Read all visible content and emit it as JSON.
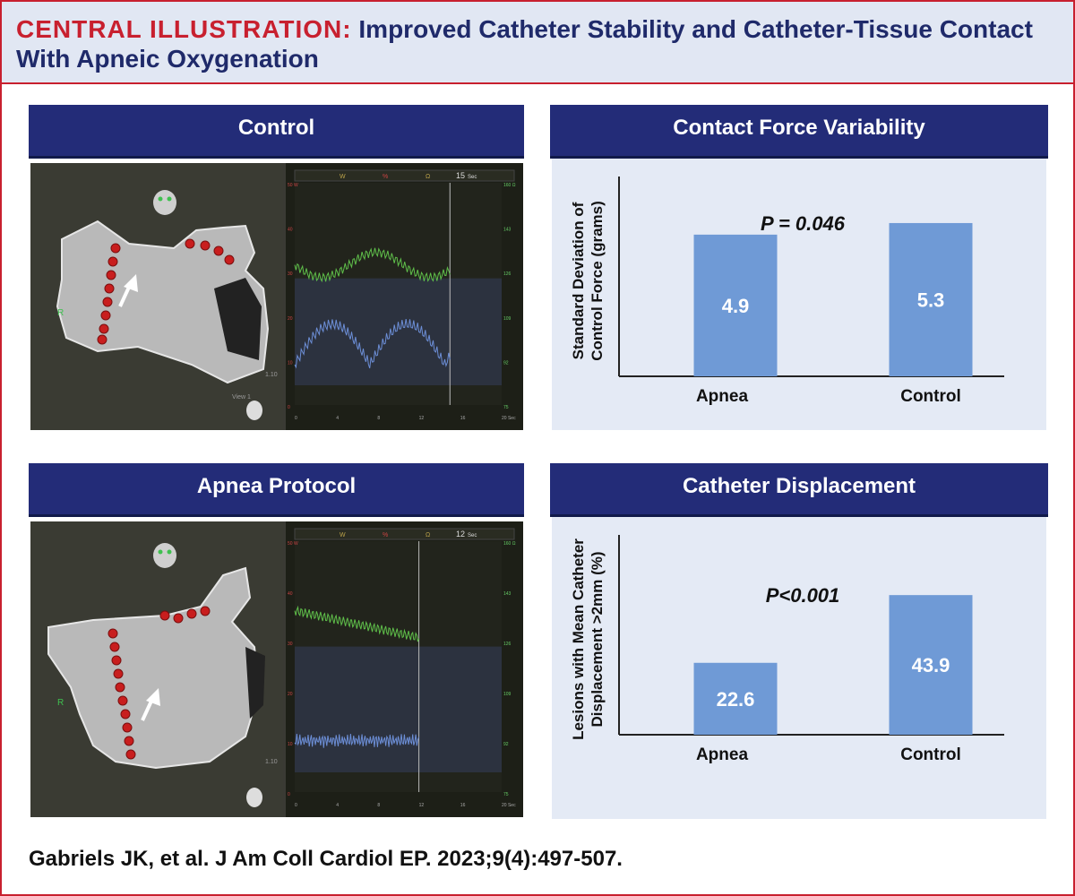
{
  "header": {
    "label": "CENTRAL ILLUSTRATION:",
    "title": "Improved Catheter Stability and Catheter-Tissue Contact With Apneic Oxygenation"
  },
  "panels": {
    "control_title": "Control",
    "apnea_title": "Apnea Protocol",
    "cf_title": "Contact Force Variability",
    "disp_title": "Catheter Displacement"
  },
  "mapping_control": {
    "time_label": "15",
    "time_unit": "Sec",
    "channel_labels": [
      "W",
      "%",
      "Ω"
    ],
    "view_label": "View 1",
    "scale_label": "1.10",
    "x_ticks": [
      "0",
      "4",
      "8",
      "12",
      "16",
      "20 Sec"
    ],
    "left_ticks": [
      "50 W",
      "40",
      "30",
      "20",
      "10",
      "0"
    ],
    "right_ticks": [
      "160 Ω",
      "143",
      "126",
      "109",
      "92",
      "75"
    ],
    "orientation": "R"
  },
  "mapping_apnea": {
    "time_label": "12",
    "time_unit": "Sec",
    "channel_labels": [
      "W",
      "%",
      "Ω"
    ],
    "scale_label": "1.10",
    "x_ticks": [
      "0",
      "4",
      "8",
      "12",
      "16",
      "20 Sec"
    ],
    "left_ticks": [
      "50 W",
      "40",
      "30",
      "20",
      "10",
      "0"
    ],
    "right_ticks": [
      "160 Ω",
      "143",
      "126",
      "109",
      "92",
      "75"
    ],
    "orientation": "R"
  },
  "chart_data": [
    {
      "type": "bar",
      "title": "Contact Force Variability",
      "ylabel": "Standard Deviation of Control Force (grams)",
      "ylabel_lines": [
        "Standard Deviation of",
        "Control Force (grams)"
      ],
      "annotation": "P = 0.046",
      "categories": [
        "Apnea",
        "Control"
      ],
      "values": [
        4.9,
        5.3
      ],
      "value_labels": [
        "4.9",
        "5.3"
      ],
      "ylim": [
        0,
        6.6
      ],
      "grid": false,
      "bar_color": "#6f9ad6"
    },
    {
      "type": "bar",
      "title": "Catheter Displacement",
      "ylabel": "Lesions with Mean Catheter Displacement >2mm (%)",
      "ylabel_lines": [
        "Lesions with Mean Catheter",
        "Displacement >2mm (%)"
      ],
      "annotation": "P<0.001",
      "categories": [
        "Apnea",
        "Control"
      ],
      "values": [
        22.6,
        43.9
      ],
      "value_labels": [
        "22.6",
        "43.9"
      ],
      "ylim": [
        0,
        60
      ],
      "grid": false,
      "bar_color": "#6f9ad6"
    }
  ],
  "citation": "Gabriels JK, et al. J Am Coll Cardiol EP. 2023;9(4):497-507.",
  "colors": {
    "accent_red": "#c8202f",
    "navy": "#232c78",
    "header_bg": "#e1e7f3",
    "chart_bg": "#e4eaf5",
    "bar": "#6f9ad6"
  }
}
